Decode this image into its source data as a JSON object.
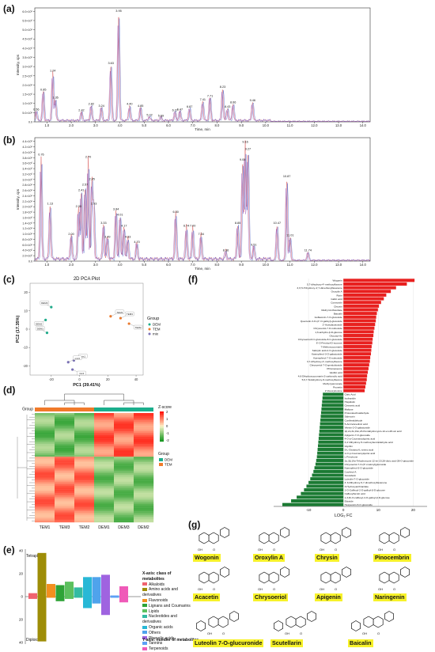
{
  "panels": {
    "a": "(a)",
    "b": "(b)",
    "c": "(c)",
    "d": "(d)",
    "e": "(e)",
    "f": "(f)",
    "g": "(g)"
  },
  "panel_a": {
    "ylabel": "Intensity, cps",
    "xlabel": "Time, min",
    "yticks": [
      "0.0",
      "5.0×10⁵",
      "1.0×10⁶",
      "1.5×10⁶",
      "2.0×10⁶",
      "2.5×10⁶",
      "3.0×10⁶",
      "3.5×10⁶",
      "4.0×10⁶",
      "4.5×10⁶",
      "5.0×10⁶",
      "5.5×10⁶",
      "6.0×10⁶"
    ],
    "xticks": [
      "1.0",
      "2.0",
      "3.0",
      "4.0",
      "5.0",
      "6.0",
      "7.0",
      "8.0",
      "9.0",
      "10.0",
      "11.0",
      "12.0",
      "13.0",
      "14.0"
    ],
    "peaks": [
      {
        "label": "0.56",
        "t": 0.56,
        "h": 0.55
      },
      {
        "label": "0.85",
        "t": 0.85,
        "h": 1.65
      },
      {
        "label": "1.24",
        "t": 1.24,
        "h": 2.7
      },
      {
        "label": "1.35",
        "t": 1.35,
        "h": 1.2
      },
      {
        "label": "2.42",
        "t": 2.42,
        "h": 0.5
      },
      {
        "label": "2.82",
        "t": 2.82,
        "h": 0.85
      },
      {
        "label": "3.24",
        "t": 3.24,
        "h": 0.75
      },
      {
        "label": "3.63",
        "t": 3.63,
        "h": 3.1
      },
      {
        "label": "3.95",
        "t": 3.95,
        "h": 6.0
      },
      {
        "label": "4.40",
        "t": 4.4,
        "h": 0.85
      },
      {
        "label": "4.85",
        "t": 4.85,
        "h": 0.75
      },
      {
        "label": "5.22",
        "t": 5.22,
        "h": 0.25
      },
      {
        "label": "5.69",
        "t": 5.69,
        "h": 0.2
      },
      {
        "label": "6.27",
        "t": 6.27,
        "h": 0.5
      },
      {
        "label": "6.47",
        "t": 6.47,
        "h": 0.55
      },
      {
        "label": "6.87",
        "t": 6.87,
        "h": 0.7
      },
      {
        "label": "7.41",
        "t": 7.41,
        "h": 1.1
      },
      {
        "label": "7.71",
        "t": 7.71,
        "h": 1.3
      },
      {
        "label": "8.23",
        "t": 8.23,
        "h": 1.8
      },
      {
        "label": "8.43",
        "t": 8.43,
        "h": 0.7
      },
      {
        "label": "8.66",
        "t": 8.66,
        "h": 0.95
      },
      {
        "label": "9.46",
        "t": 9.46,
        "h": 1.05
      }
    ]
  },
  "panel_b": {
    "ylabel": "Intensity, cps",
    "xlabel": "Time, min",
    "yticks": [
      "0.0",
      "2.0×10⁵",
      "4.0×10⁵",
      "6.0×10⁵",
      "8.0×10⁵",
      "1.0×10⁶",
      "1.2×10⁶",
      "1.4×10⁶",
      "1.6×10⁶",
      "1.8×10⁶",
      "2.0×10⁶",
      "2.2×10⁶",
      "2.4×10⁶",
      "2.6×10⁶",
      "2.8×10⁶",
      "3.0×10⁶",
      "3.2×10⁶",
      "3.4×10⁶",
      "3.6×10⁶",
      "3.8×10⁶",
      "4.0×10⁶",
      "4.2×10⁶",
      "4.4×10⁶"
    ],
    "xticks": [
      "1.0",
      "2.0",
      "3.0",
      "4.0",
      "5.0",
      "6.0",
      "7.0",
      "8.0",
      "9.0",
      "10.0",
      "11.0",
      "12.0",
      "13.0",
      "14.0"
    ],
    "peaks": [
      {
        "label": "0.76",
        "t": 0.76,
        "h": 3.8
      },
      {
        "label": "1.13",
        "t": 1.13,
        "h": 2.0
      },
      {
        "label": "2.00",
        "t": 2.0,
        "h": 0.9
      },
      {
        "label": "2.30",
        "t": 2.3,
        "h": 1.9
      },
      {
        "label": "2.41",
        "t": 2.41,
        "h": 2.5
      },
      {
        "label": "2.57",
        "t": 2.57,
        "h": 2.7
      },
      {
        "label": "2.70",
        "t": 2.7,
        "h": 3.7
      },
      {
        "label": "2.85",
        "t": 2.85,
        "h": 2.9
      },
      {
        "label": "2.93",
        "t": 2.93,
        "h": 2.0
      },
      {
        "label": "3.33",
        "t": 3.33,
        "h": 1.3
      },
      {
        "label": "3.49",
        "t": 3.49,
        "h": 0.8
      },
      {
        "label": "3.84",
        "t": 3.84,
        "h": 1.8
      },
      {
        "label": "4.01",
        "t": 4.01,
        "h": 1.6
      },
      {
        "label": "4.17",
        "t": 4.17,
        "h": 1.2
      },
      {
        "label": "4.33",
        "t": 4.33,
        "h": 0.8
      },
      {
        "label": "4.70",
        "t": 4.7,
        "h": 0.6
      },
      {
        "label": "6.30",
        "t": 6.3,
        "h": 1.7
      },
      {
        "label": "6.74",
        "t": 6.74,
        "h": 1.2
      },
      {
        "label": "7.00",
        "t": 7.0,
        "h": 1.2
      },
      {
        "label": "7.34",
        "t": 7.34,
        "h": 0.9
      },
      {
        "label": "8.36",
        "t": 8.36,
        "h": 0.3
      },
      {
        "label": "8.85",
        "t": 8.85,
        "h": 1.3
      },
      {
        "label": "9.05",
        "t": 9.05,
        "h": 3.6
      },
      {
        "label": "9.16",
        "t": 9.16,
        "h": 4.25
      },
      {
        "label": "9.27",
        "t": 9.27,
        "h": 4.0
      },
      {
        "label": "9.51",
        "t": 9.51,
        "h": 0.5
      },
      {
        "label": "10.47",
        "t": 10.47,
        "h": 1.3
      },
      {
        "label": "10.87",
        "t": 10.87,
        "h": 3.0
      },
      {
        "label": "11.01",
        "t": 11.01,
        "h": 0.85
      },
      {
        "label": "11.74",
        "t": 11.74,
        "h": 0.3
      }
    ]
  },
  "chart_data": {
    "type": "scatter",
    "title": "2D PCA Plot",
    "xlabel": "PC1 (39.41%)",
    "ylabel": "PC2 (17.35%)",
    "xticks": [
      "-20",
      "0",
      "20",
      "40"
    ],
    "yticks": [
      "-20",
      "-10",
      "0",
      "10",
      "20"
    ],
    "xlim": [
      -35,
      45
    ],
    "ylim": [
      -25,
      25
    ],
    "legend_title": "Group",
    "series": [
      {
        "name": "DEM",
        "color": "#1bae8c",
        "points": [
          {
            "label": "DEM1",
            "x": -23,
            "y": -2
          },
          {
            "label": "DEM2",
            "x": -24,
            "y": 5
          },
          {
            "label": "DEM3",
            "x": -20,
            "y": 12
          }
        ]
      },
      {
        "name": "TEM",
        "color": "#f07a2a",
        "points": [
          {
            "label": "TEM1",
            "x": 22,
            "y": 7
          },
          {
            "label": "TEM2",
            "x": 35,
            "y": 3
          },
          {
            "label": "TEM3",
            "x": 29,
            "y": 6
          }
        ]
      },
      {
        "name": "mix",
        "color": "#7b72b8",
        "points": [
          {
            "label": "mix1",
            "x": -4,
            "y": -17
          },
          {
            "label": "mix2",
            "x": -5,
            "y": -22
          },
          {
            "label": "mix3",
            "x": -8,
            "y": -18
          }
        ]
      }
    ]
  },
  "panel_d": {
    "group_label": "Group",
    "zscore_label": "Z-score",
    "zscore_ticks": [
      "2",
      "1",
      "0",
      "-1",
      "-2"
    ],
    "legend_title": "Group",
    "legend": [
      {
        "name": "DEM",
        "color": "#1bae8c"
      },
      {
        "name": "TEM",
        "color": "#f07a2a"
      }
    ],
    "columns": [
      "TEM1",
      "TEM3",
      "TEM2",
      "DEM1",
      "DEM3",
      "DEM2"
    ]
  },
  "panel_e": {
    "top_label": "Tetraploid",
    "bottom_label": "Diploid",
    "yticks": [
      "40",
      "20",
      "0",
      "20",
      "40"
    ],
    "legend_header": "X-axis: class of metabolites",
    "footer": "Y-axis: number of metabolites",
    "classes": [
      {
        "name": "Alkaloids",
        "color": "#f0636f",
        "up": 3,
        "down": 2
      },
      {
        "name": "Amino acids and derivatives",
        "color": "#9e8d07",
        "up": 38,
        "down": 39
      },
      {
        "name": "Flavonoids",
        "color": "#f28f1f",
        "up": 11,
        "down": 1
      },
      {
        "name": "Lignans and Coumarins",
        "color": "#2ea337",
        "up": 10,
        "down": 4
      },
      {
        "name": "Lipids",
        "color": "#5cc05e",
        "up": 13,
        "down": 2
      },
      {
        "name": "Nucleotides and derivatives",
        "color": "#33bba2",
        "up": 8,
        "down": 1
      },
      {
        "name": "Organic acids",
        "color": "#28b8d6",
        "up": 17,
        "down": 10
      },
      {
        "name": "Others",
        "color": "#4fa3ec",
        "up": 17,
        "down": 6
      },
      {
        "name": "Phenolic acids",
        "color": "#9f63e0",
        "up": 19,
        "down": 16
      },
      {
        "name": "Tannins",
        "color": "#5da0f5",
        "up": 1,
        "down": 1
      },
      {
        "name": "Terpenoids",
        "color": "#ef5ab8",
        "up": 9,
        "down": 5
      }
    ]
  },
  "panel_f": {
    "xlabel": "LOG₂ FC",
    "xticks": [
      "-10",
      "0",
      "10",
      "20"
    ],
    "xlim": [
      -20,
      24
    ],
    "items": [
      {
        "name": "Wogonin",
        "v": 20.4
      },
      {
        "name": "5,7-dihydroxy-4'-methoxyflavone",
        "v": 18.2
      },
      {
        "name": "3,3',5-Trihydroxy-4',7-dimethoxyflavanone",
        "v": 15.1
      },
      {
        "name": "Oroxylin A",
        "v": 13.6
      },
      {
        "name": "Rutin",
        "v": 12.3
      },
      {
        "name": "Gallic acid",
        "v": 11.6
      },
      {
        "name": "Cosmosiin",
        "v": 10.8
      },
      {
        "name": "Chrysin",
        "v": 10.2
      },
      {
        "name": "Methyl Anthranilate",
        "v": 9.9
      },
      {
        "name": "Baicalin",
        "v": 9.6
      },
      {
        "name": "Isoflavonin-7-O-glucoside",
        "v": 9.4
      },
      {
        "name": "Quercetin-3-O-(2''-O-galloyl)-glucoside",
        "v": 9.3
      },
      {
        "name": "2'-Acetylacteoside",
        "v": 9.1
      },
      {
        "name": "Chrysoeriol-7-O-rutinoside",
        "v": 8.9
      },
      {
        "name": "1,6-anhydro-β-D-glucose",
        "v": 8.7
      },
      {
        "name": "Glucosyl Az",
        "v": 8.6
      },
      {
        "name": "Chrysoeriol-6-C-glucoside-8-C-glucoside",
        "v": 8.4
      },
      {
        "name": "6'-O-Feruloyl-D-sucrose",
        "v": 8.3
      },
      {
        "name": "7-Methoxycoumarin",
        "v": 8.1
      },
      {
        "name": "Salicylic acid-2-O-glucoside",
        "v": 8.0
      },
      {
        "name": "Kaempferol-3-O-galactoside",
        "v": 7.9
      },
      {
        "name": "Kaempferol-7-O-rutinoside",
        "v": 7.7
      },
      {
        "name": "3,7-dihydroxy-4'-methoxyflavone",
        "v": 7.6
      },
      {
        "name": "Chrysoeriol-7-O-gentiobioside",
        "v": 7.4
      },
      {
        "name": "Phloroaneone",
        "v": 7.2
      },
      {
        "name": "Vanillic acid",
        "v": 7.0
      },
      {
        "name": "4,6-Dihydroxycoumarin-2-carboxylic acid",
        "v": 6.8
      },
      {
        "name": "5,6,7-Tetrahydroxy-8-methoxyflavone",
        "v": 6.7
      },
      {
        "name": "Methyl jasmonate",
        "v": 6.5
      },
      {
        "name": "Prunetin",
        "v": 6.3
      },
      {
        "name": "2'-Deoxyinosine",
        "v": 6.1
      },
      {
        "name": "Citric Acid",
        "v": -5.9
      },
      {
        "name": "Isofraxidin",
        "v": -6.0
      },
      {
        "name": "Hispidulin",
        "v": -6.1
      },
      {
        "name": "Cinnamic acid",
        "v": -6.2
      },
      {
        "name": "Maltose",
        "v": -6.3
      },
      {
        "name": "Protocatechualdehyde",
        "v": -6.4
      },
      {
        "name": "Sideroxin",
        "v": -6.5
      },
      {
        "name": "Coniferaldehyde",
        "v": -6.6
      },
      {
        "name": "5-Aminolevulinic acid",
        "v": -6.7
      },
      {
        "name": "Vitexin-2-O-galactoside",
        "v": -6.8
      },
      {
        "name": "1β,2α,3α,19α,23-Pentahydroxyurs-12-en-28-oic acid",
        "v": -6.9
      },
      {
        "name": "Apigenin-7-O-glucoside",
        "v": -7.0
      },
      {
        "name": "4-O-p-Coumaroylquinic acid",
        "v": -7.1
      },
      {
        "name": "3,4'-Dihydroxy-5-methoxybenzaldehyde acid",
        "v": -7.2
      },
      {
        "name": "Glycitin",
        "v": -7.3
      },
      {
        "name": "5-L-Glutamyl-L-amino acid",
        "v": -7.4
      },
      {
        "name": "1-O-p-Coumaroylquinic acid",
        "v": -7.5
      },
      {
        "name": "L-Fenchone",
        "v": -7.6
      },
      {
        "name": "2α,3β,19α-Trihydroxyurs-12-en-23,28-dioic acid-28-O-glucoside",
        "v": -7.8
      },
      {
        "name": "Chrysoeriol-7-O-(6''-malonyl)glucoside",
        "v": -8.0
      },
      {
        "name": "Kaempferol-3-O-glucoside",
        "v": -8.3
      },
      {
        "name": "Cochinol A",
        "v": -8.6
      },
      {
        "name": "Scutellarin",
        "v": -9.0
      },
      {
        "name": "Luteolin-7-O-glucoside",
        "v": -9.5
      },
      {
        "name": "4',6-Dihydroxy-5,7-dimethoxyflavanone",
        "v": -10.0
      },
      {
        "name": "3-Hydroxyanthranilate",
        "v": -10.6
      },
      {
        "name": "1-O-Caffeoyl-2-O-galloyl-β-D-glucose",
        "v": -11.3
      },
      {
        "name": "Caffeoylferulic acid",
        "v": -12.2
      },
      {
        "name": "1,3-Di-O-caffeoyl-4-O-galloyl-β-D-glucose",
        "v": -13.4
      },
      {
        "name": "Etioside",
        "v": -15.0
      },
      {
        "name": "Hesperetin-5-O-glucoside",
        "v": -17.5
      }
    ]
  },
  "panel_g": {
    "compounds": [
      "Wogonin",
      "Oroxylin A",
      "Chrysin",
      "Pinocembrin",
      "Acacetin",
      "Chrysoeriol",
      "Apigenin",
      "Naringenin",
      "Luteolin 7-O-glucuronide",
      "Scutellarin",
      "Baicalin"
    ]
  }
}
